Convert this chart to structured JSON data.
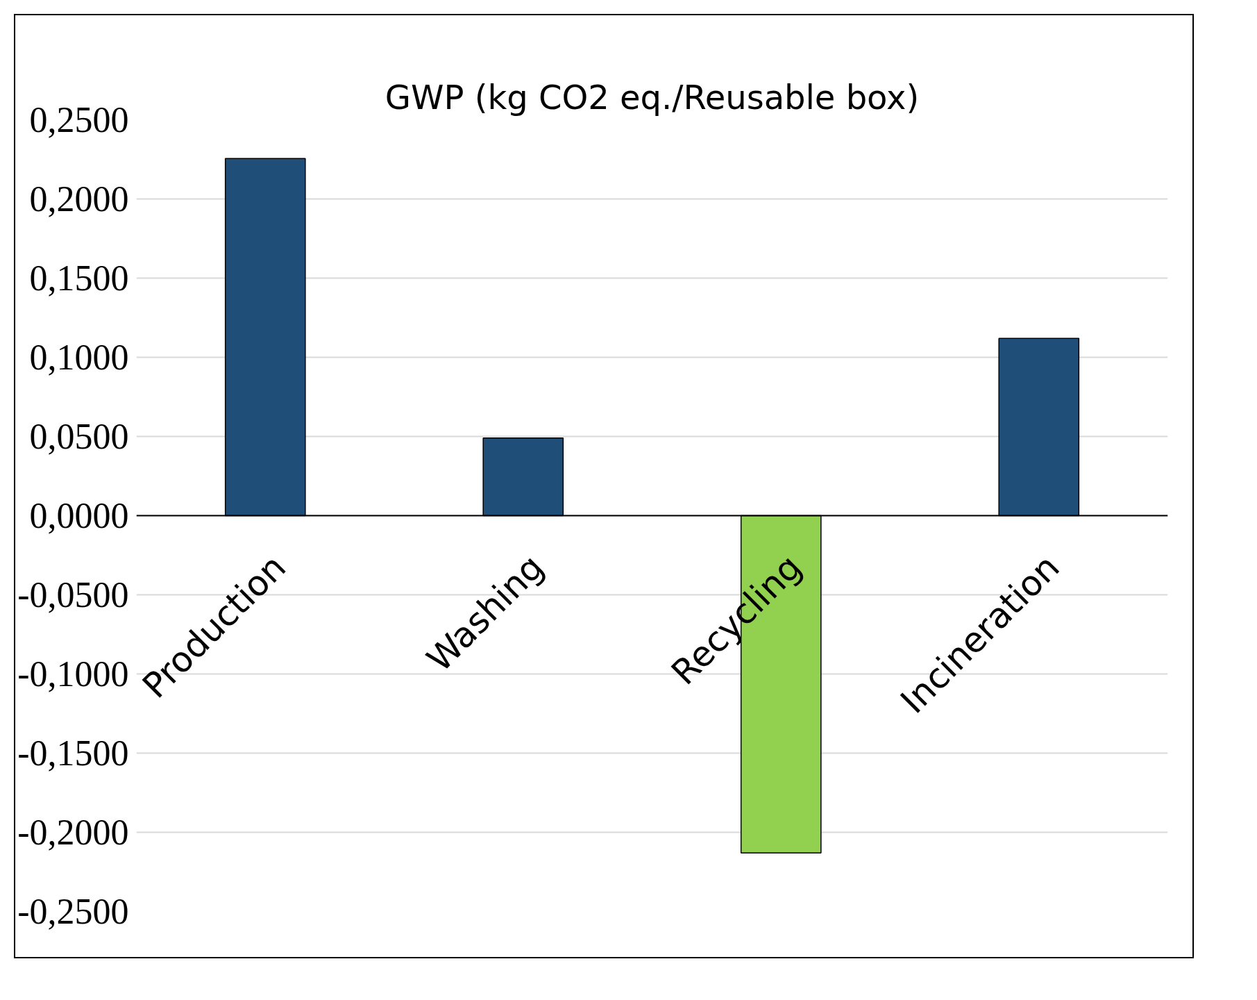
{
  "chart_data": {
    "type": "bar",
    "title": "GWP (kg CO2 eq./Reusable box)",
    "categories": [
      "Production",
      "Washing",
      "Recycling",
      "Incineration"
    ],
    "values": [
      0.2255,
      0.049,
      -0.213,
      0.112
    ],
    "colors": [
      "#1f4e79",
      "#1f4e79",
      "#92d050",
      "#1f4e79"
    ],
    "ylim": [
      -0.25,
      0.25
    ],
    "yticks": [
      {
        "value": -0.25,
        "label": "-0,2500"
      },
      {
        "value": -0.2,
        "label": "-0,2000"
      },
      {
        "value": -0.15,
        "label": "-0,1500"
      },
      {
        "value": -0.1,
        "label": "-0,1000"
      },
      {
        "value": -0.05,
        "label": "-0,0500"
      },
      {
        "value": 0,
        "label": "0,0000"
      },
      {
        "value": 0.05,
        "label": "0,0500"
      },
      {
        "value": 0.1,
        "label": "0,1000"
      },
      {
        "value": 0.15,
        "label": "0,1500"
      },
      {
        "value": 0.2,
        "label": "0,2000"
      },
      {
        "value": 0.25,
        "label": "0,2500"
      }
    ],
    "grid": "y"
  }
}
